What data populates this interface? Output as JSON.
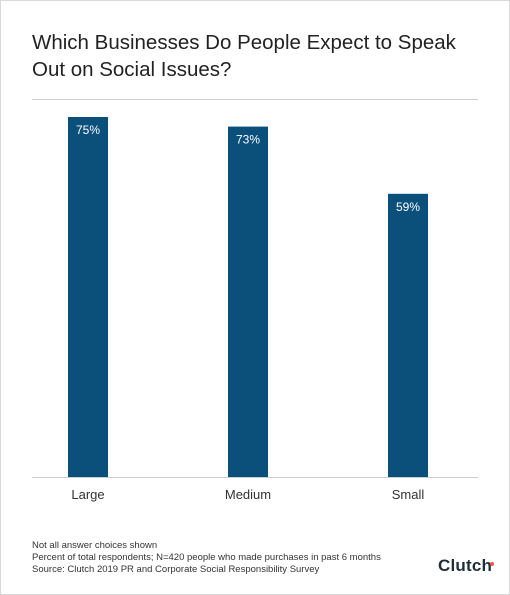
{
  "chart_data": {
    "type": "bar",
    "title": "Which Businesses Do People Expect to Speak Out on Social Issues?",
    "categories": [
      "Large",
      "Medium",
      "Small"
    ],
    "values": [
      75,
      73,
      59
    ],
    "value_labels": [
      "75%",
      "73%",
      "59%"
    ],
    "ylim": [
      0,
      75
    ],
    "grid": false,
    "bar_color": "#0b4f7b"
  },
  "footnotes": [
    "Not all answer choices shown",
    "Percent of total respondents; N=420 people who made purchases in past 6 months",
    "Source: Clutch 2019 PR and Corporate Social Responsibility Survey"
  ],
  "logo": {
    "text": "Clutch",
    "dot_color": "#e8564a"
  },
  "colors": {
    "title": "#222222",
    "axis": "#cccccc",
    "label_text": "#ffffff",
    "category_text": "#333333"
  }
}
